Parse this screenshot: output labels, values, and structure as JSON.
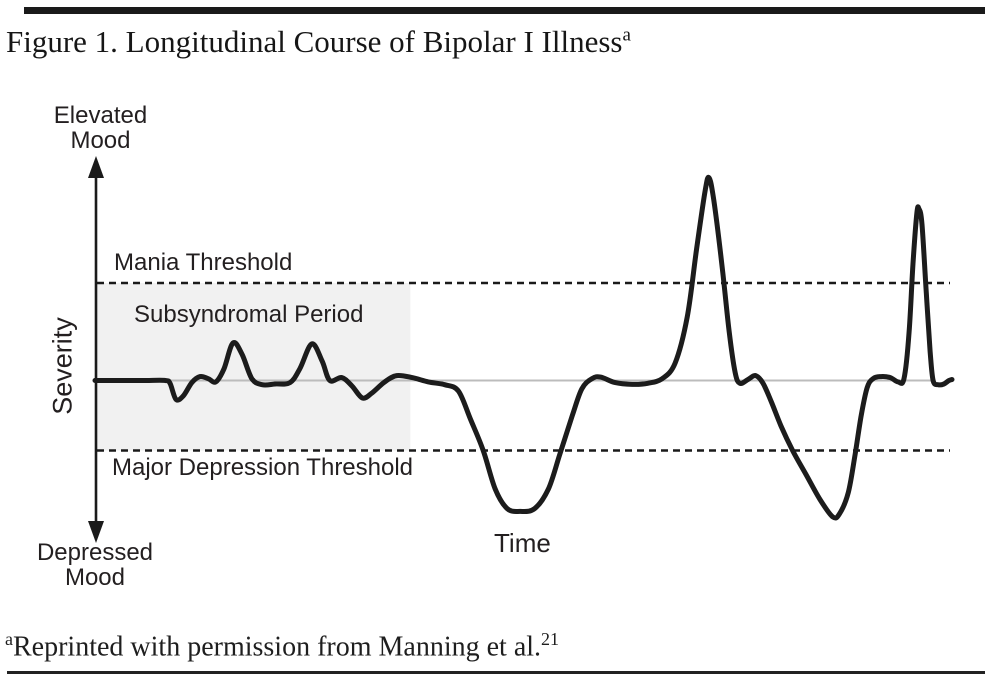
{
  "page": {
    "title": "Figure 1. Longitudinal Course of Bipolar I Illness",
    "title_superscript": "a",
    "footnote_superscript": "a",
    "footnote_text": "Reprinted with permission from Manning et al.",
    "footnote_reference": "21"
  },
  "chart": {
    "labels": {
      "elevated_mood": "Elevated\nMood",
      "depressed_mood": "Depressed\nMood",
      "severity_axis": "Severity",
      "mania_threshold": "Mania Threshold",
      "subsyndromal_period": "Subsyndromal Period",
      "major_depression_threshold": "Major Depression Threshold",
      "time_axis": "Time"
    },
    "colors": {
      "curve": "#1c1c1c",
      "threshold_line": "#1a1a1a",
      "baseline": "#bcbcbc",
      "subsyndromal_fill": "#f1f1f1",
      "axis": "#1a1a1a",
      "text": "#231f20"
    }
  },
  "chart_data": {
    "type": "line",
    "title": "Longitudinal Course of Bipolar I Illness",
    "xlabel": "Time",
    "ylabel": "Severity",
    "x_units": "schematic time, 0-100 (no numeric ticks shown)",
    "y_units": "mood severity: 0 = euthymic baseline, +1 = mania threshold, -1 = major depression threshold",
    "ylim": [
      -2.2,
      2.3
    ],
    "grid": false,
    "legend": false,
    "reference_lines": [
      {
        "label": "Mania Threshold",
        "y": 1,
        "style": "dashed"
      },
      {
        "label": "Euthymia baseline (unlabeled gray line)",
        "y": 0,
        "style": "solid-gray"
      },
      {
        "label": "Major Depression Threshold",
        "y": -1,
        "style": "dashed"
      }
    ],
    "shaded_region": {
      "label": "Subsyndromal Period",
      "x_range": [
        0,
        36.8
      ],
      "y_range": [
        -1,
        1
      ]
    },
    "series": [
      {
        "name": "Mood severity course",
        "points": [
          [
            0,
            0
          ],
          [
            2,
            0
          ],
          [
            4.1,
            0
          ],
          [
            6,
            0
          ],
          [
            8.2,
            0
          ],
          [
            8.75,
            -0.04
          ],
          [
            9.45,
            -0.27
          ],
          [
            10.3,
            -0.22
          ],
          [
            11.3,
            -0.03
          ],
          [
            12.25,
            0.04
          ],
          [
            13.2,
            0.02
          ],
          [
            14.1,
            -0.02
          ],
          [
            15.05,
            0.12
          ],
          [
            16.1,
            0.385
          ],
          [
            17.15,
            0.27
          ],
          [
            18.3,
            0.02
          ],
          [
            19.5,
            -0.06
          ],
          [
            21,
            -0.05
          ],
          [
            22.75,
            -0.03
          ],
          [
            23.9,
            0.12
          ],
          [
            25.3,
            0.375
          ],
          [
            26.5,
            0.2
          ],
          [
            27.4,
            0
          ],
          [
            28.8,
            0.03
          ],
          [
            30,
            -0.08
          ],
          [
            31.2,
            -0.25
          ],
          [
            32.3,
            -0.18
          ],
          [
            33.8,
            -0.02
          ],
          [
            35.2,
            0.05
          ],
          [
            37,
            0.03
          ],
          [
            38.9,
            -0.02
          ],
          [
            40.8,
            -0.06
          ],
          [
            42.4,
            -0.15
          ],
          [
            43.8,
            -0.55
          ],
          [
            45.3,
            -1
          ],
          [
            46.7,
            -1.55
          ],
          [
            48.1,
            -1.83
          ],
          [
            49.6,
            -1.87
          ],
          [
            51.3,
            -1.83
          ],
          [
            52.9,
            -1.55
          ],
          [
            54.25,
            -1.05
          ],
          [
            55.7,
            -0.5
          ],
          [
            56.8,
            -0.12
          ],
          [
            58,
            0.02
          ],
          [
            59,
            0.035
          ],
          [
            60.7,
            -0.03
          ],
          [
            62.7,
            -0.055
          ],
          [
            64.5,
            -0.04
          ],
          [
            66.2,
            0.02
          ],
          [
            67.7,
            0.18
          ],
          [
            69.1,
            0.65
          ],
          [
            70.2,
            1.35
          ],
          [
            71.2,
            1.95
          ],
          [
            71.65,
            2.08
          ],
          [
            72.2,
            1.85
          ],
          [
            73.2,
            1.15
          ],
          [
            74,
            0.5
          ],
          [
            74.7,
            0.08
          ],
          [
            75.25,
            -0.04
          ],
          [
            76.2,
            0.01
          ],
          [
            77.1,
            0.05
          ],
          [
            77.95,
            -0.04
          ],
          [
            78.9,
            -0.3
          ],
          [
            80.05,
            -0.65
          ],
          [
            81.4,
            -1
          ],
          [
            83,
            -1.35
          ],
          [
            84.6,
            -1.7
          ],
          [
            86.1,
            -1.95
          ],
          [
            86.9,
            -1.9
          ],
          [
            87.9,
            -1.6
          ],
          [
            88.7,
            -1.05
          ],
          [
            89.4,
            -0.5
          ],
          [
            90.1,
            -0.1
          ],
          [
            90.8,
            0.02
          ],
          [
            91.7,
            0.04
          ],
          [
            92.8,
            0.03
          ],
          [
            93.7,
            -0.02
          ],
          [
            94.4,
            0.02
          ],
          [
            95,
            0.5
          ],
          [
            95.45,
            1.2
          ],
          [
            95.9,
            1.72
          ],
          [
            96.15,
            1.76
          ],
          [
            96.5,
            1.6
          ],
          [
            97,
            0.9
          ],
          [
            97.45,
            0.3
          ],
          [
            97.8,
            0
          ],
          [
            98.4,
            -0.06
          ],
          [
            99.05,
            -0.05
          ],
          [
            99.65,
            0
          ],
          [
            100,
            0.01
          ]
        ]
      }
    ]
  }
}
